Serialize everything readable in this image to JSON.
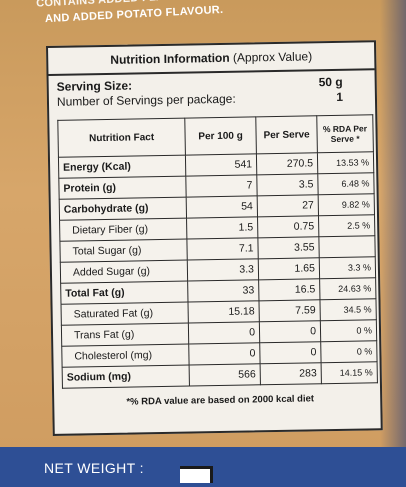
{
  "top_text": {
    "line1": "CONTAINS ADDED FLAVOUR",
    "line2": "AND ADDED POTATO FLAVOUR."
  },
  "panel": {
    "title_bold": "Nutrition Information",
    "title_rest": "(Approx Value)",
    "serving_size_label": "Serving Size:",
    "serving_size_value": "50 g",
    "servings_label": "Number of Servings per package:",
    "servings_value": "1"
  },
  "table": {
    "headers": [
      "Nutrition Fact",
      "Per 100 g",
      "Per Serve",
      "% RDA Per Serve *"
    ],
    "rows": [
      {
        "label": "Energy (Kcal)",
        "per100": "541",
        "serve": "270.5",
        "rda": "13.53 %",
        "bold": true
      },
      {
        "label": "Protein (g)",
        "per100": "7",
        "serve": "3.5",
        "rda": "6.48 %",
        "bold": true
      },
      {
        "label": "Carbohydrate (g)",
        "per100": "54",
        "serve": "27",
        "rda": "9.82 %",
        "bold": true
      },
      {
        "label": "Dietary Fiber (g)",
        "per100": "1.5",
        "serve": "0.75",
        "rda": "2.5 %",
        "bold": false
      },
      {
        "label": "Total Sugar (g)",
        "per100": "7.1",
        "serve": "3.55",
        "rda": "",
        "bold": false
      },
      {
        "label": "Added Sugar (g)",
        "per100": "3.3",
        "serve": "1.65",
        "rda": "3.3 %",
        "bold": false
      },
      {
        "label": "Total Fat (g)",
        "per100": "33",
        "serve": "16.5",
        "rda": "24.63 %",
        "bold": true
      },
      {
        "label": "Saturated Fat (g)",
        "per100": "15.18",
        "serve": "7.59",
        "rda": "34.5 %",
        "bold": false
      },
      {
        "label": "Trans Fat (g)",
        "per100": "0",
        "serve": "0",
        "rda": "0 %",
        "bold": false
      },
      {
        "label": "Cholesterol (mg)",
        "per100": "0",
        "serve": "0",
        "rda": "0 %",
        "bold": false
      },
      {
        "label": "Sodium (mg)",
        "per100": "566",
        "serve": "283",
        "rda": "14.15 %",
        "bold": true
      }
    ]
  },
  "note": "*% RDA value are based on 2000 kcal diet",
  "bottom": {
    "net_weight_label": "NET WEIGHT :"
  }
}
